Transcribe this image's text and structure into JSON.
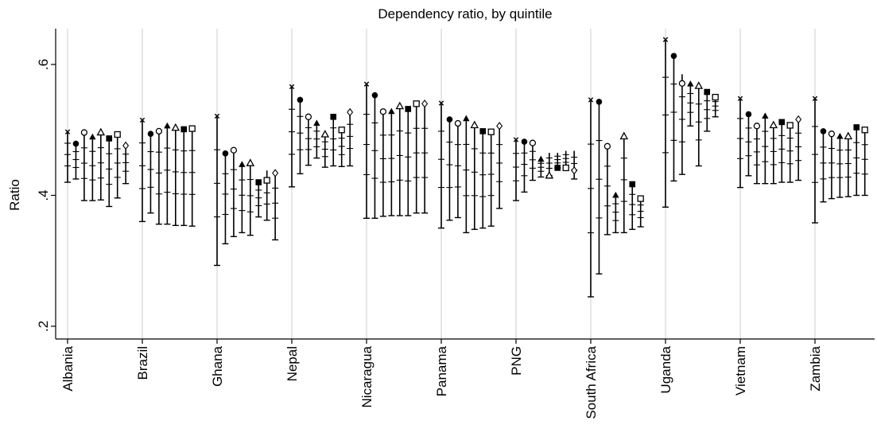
{
  "chart_data": {
    "type": "scatter",
    "subtype": "dot-and-range plot",
    "title": "Dependency ratio, by quintile",
    "xlabel": "",
    "ylabel": "Ratio",
    "ylim": [
      0.17,
      0.66
    ],
    "yticks": [
      {
        "value": 0.2,
        "label": ".2"
      },
      {
        "value": 0.4,
        "label": ".4"
      },
      {
        "value": 0.6,
        "label": ".6"
      }
    ],
    "grid": {
      "x": true,
      "y": false,
      "x_grid_color": "#e6e6e6"
    },
    "markers_per_country": [
      "x",
      "filled-circle",
      "hollow-circle",
      "filled-triangle",
      "hollow-triangle",
      "filled-square",
      "hollow-square",
      "hollow-diamond"
    ],
    "countries": [
      {
        "name": "Albania",
        "points": [
          {
            "marker": "x",
            "y": 0.497,
            "lo": 0.42,
            "hi": 0.497
          },
          {
            "marker": "filled-circle",
            "y": 0.479,
            "lo": 0.425,
            "hi": 0.479
          },
          {
            "marker": "hollow-circle",
            "y": 0.496,
            "lo": 0.392,
            "hi": 0.496
          },
          {
            "marker": "filled-triangle",
            "y": 0.489,
            "lo": 0.392,
            "hi": 0.489
          },
          {
            "marker": "hollow-triangle",
            "y": 0.496,
            "lo": 0.393,
            "hi": 0.496
          },
          {
            "marker": "filled-square",
            "y": 0.487,
            "lo": 0.383,
            "hi": 0.487
          },
          {
            "marker": "hollow-square",
            "y": 0.493,
            "lo": 0.396,
            "hi": 0.493
          },
          {
            "marker": "hollow-diamond",
            "y": 0.476,
            "lo": 0.418,
            "hi": 0.476
          }
        ]
      },
      {
        "name": "Brazil",
        "points": [
          {
            "marker": "x",
            "y": 0.515,
            "lo": 0.36,
            "hi": 0.515
          },
          {
            "marker": "filled-circle",
            "y": 0.494,
            "lo": 0.373,
            "hi": 0.494
          },
          {
            "marker": "hollow-circle",
            "y": 0.498,
            "lo": 0.356,
            "hi": 0.498
          },
          {
            "marker": "filled-triangle",
            "y": 0.506,
            "lo": 0.356,
            "hi": 0.506
          },
          {
            "marker": "hollow-triangle",
            "y": 0.503,
            "lo": 0.354,
            "hi": 0.503
          },
          {
            "marker": "filled-square",
            "y": 0.501,
            "lo": 0.354,
            "hi": 0.501
          },
          {
            "marker": "hollow-square",
            "y": 0.502,
            "lo": 0.353,
            "hi": 0.502
          }
        ]
      },
      {
        "name": "Ghana",
        "points": [
          {
            "marker": "x",
            "y": 0.521,
            "lo": 0.293,
            "hi": 0.521
          },
          {
            "marker": "filled-circle",
            "y": 0.464,
            "lo": 0.326,
            "hi": 0.464
          },
          {
            "marker": "hollow-circle",
            "y": 0.469,
            "lo": 0.337,
            "hi": 0.469
          },
          {
            "marker": "filled-triangle",
            "y": 0.447,
            "lo": 0.343,
            "hi": 0.447
          },
          {
            "marker": "hollow-triangle",
            "y": 0.449,
            "lo": 0.339,
            "hi": 0.449
          },
          {
            "marker": "filled-square",
            "y": 0.42,
            "lo": 0.367,
            "hi": 0.42
          },
          {
            "marker": "hollow-square",
            "y": 0.423,
            "lo": 0.362,
            "hi": 0.438
          },
          {
            "marker": "hollow-diamond",
            "y": 0.434,
            "lo": 0.332,
            "hi": 0.434
          }
        ]
      },
      {
        "name": "Nepal",
        "points": [
          {
            "marker": "x",
            "y": 0.566,
            "lo": 0.413,
            "hi": 0.566
          },
          {
            "marker": "filled-circle",
            "y": 0.546,
            "lo": 0.433,
            "hi": 0.546
          },
          {
            "marker": "hollow-circle",
            "y": 0.52,
            "lo": 0.446,
            "hi": 0.52
          },
          {
            "marker": "filled-triangle",
            "y": 0.51,
            "lo": 0.457,
            "hi": 0.51
          },
          {
            "marker": "hollow-triangle",
            "y": 0.493,
            "lo": 0.443,
            "hi": 0.493
          },
          {
            "marker": "filled-square",
            "y": 0.52,
            "lo": 0.445,
            "hi": 0.52
          },
          {
            "marker": "hollow-square",
            "y": 0.5,
            "lo": 0.444,
            "hi": 0.5
          },
          {
            "marker": "hollow-diamond",
            "y": 0.527,
            "lo": 0.445,
            "hi": 0.527
          }
        ]
      },
      {
        "name": "Nicaragua",
        "points": [
          {
            "marker": "x",
            "y": 0.57,
            "lo": 0.365,
            "hi": 0.57
          },
          {
            "marker": "filled-circle",
            "y": 0.553,
            "lo": 0.365,
            "hi": 0.553
          },
          {
            "marker": "hollow-circle",
            "y": 0.528,
            "lo": 0.368,
            "hi": 0.528
          },
          {
            "marker": "filled-triangle",
            "y": 0.528,
            "lo": 0.369,
            "hi": 0.528
          },
          {
            "marker": "hollow-triangle",
            "y": 0.536,
            "lo": 0.369,
            "hi": 0.536
          },
          {
            "marker": "filled-square",
            "y": 0.532,
            "lo": 0.369,
            "hi": 0.532
          },
          {
            "marker": "hollow-square",
            "y": 0.54,
            "lo": 0.373,
            "hi": 0.54
          },
          {
            "marker": "hollow-diamond",
            "y": 0.54,
            "lo": 0.373,
            "hi": 0.54
          }
        ]
      },
      {
        "name": "Panama",
        "points": [
          {
            "marker": "x",
            "y": 0.541,
            "lo": 0.35,
            "hi": 0.541
          },
          {
            "marker": "filled-circle",
            "y": 0.516,
            "lo": 0.362,
            "hi": 0.516
          },
          {
            "marker": "hollow-circle",
            "y": 0.51,
            "lo": 0.366,
            "hi": 0.51
          },
          {
            "marker": "filled-triangle",
            "y": 0.517,
            "lo": 0.343,
            "hi": 0.517
          },
          {
            "marker": "hollow-triangle",
            "y": 0.507,
            "lo": 0.348,
            "hi": 0.507
          },
          {
            "marker": "filled-square",
            "y": 0.498,
            "lo": 0.35,
            "hi": 0.498
          },
          {
            "marker": "hollow-square",
            "y": 0.497,
            "lo": 0.353,
            "hi": 0.497
          },
          {
            "marker": "hollow-diamond",
            "y": 0.506,
            "lo": 0.38,
            "hi": 0.506
          }
        ]
      },
      {
        "name": "PNG",
        "points": [
          {
            "marker": "x",
            "y": 0.485,
            "lo": 0.392,
            "hi": 0.485
          },
          {
            "marker": "filled-circle",
            "y": 0.482,
            "lo": 0.405,
            "hi": 0.482
          },
          {
            "marker": "hollow-circle",
            "y": 0.48,
            "lo": 0.423,
            "hi": 0.48
          },
          {
            "marker": "filled-triangle",
            "y": 0.455,
            "lo": 0.428,
            "hi": 0.455
          },
          {
            "marker": "hollow-triangle",
            "y": 0.43,
            "lo": 0.43,
            "hi": 0.465
          },
          {
            "marker": "filled-square",
            "y": 0.442,
            "lo": 0.442,
            "hi": 0.465
          },
          {
            "marker": "hollow-square",
            "y": 0.442,
            "lo": 0.442,
            "hi": 0.468
          },
          {
            "marker": "hollow-diamond",
            "y": 0.438,
            "lo": 0.425,
            "hi": 0.468
          }
        ]
      },
      {
        "name": "South Africa",
        "points": [
          {
            "marker": "x",
            "y": 0.546,
            "lo": 0.245,
            "hi": 0.546
          },
          {
            "marker": "filled-circle",
            "y": 0.543,
            "lo": 0.28,
            "hi": 0.543
          },
          {
            "marker": "hollow-circle",
            "y": 0.475,
            "lo": 0.34,
            "hi": 0.475
          },
          {
            "marker": "filled-triangle",
            "y": 0.4,
            "lo": 0.343,
            "hi": 0.4
          },
          {
            "marker": "hollow-triangle",
            "y": 0.49,
            "lo": 0.343,
            "hi": 0.49
          },
          {
            "marker": "filled-square",
            "y": 0.417,
            "lo": 0.348,
            "hi": 0.417
          },
          {
            "marker": "hollow-square",
            "y": 0.395,
            "lo": 0.352,
            "hi": 0.395
          }
        ]
      },
      {
        "name": "Uganda",
        "points": [
          {
            "marker": "x",
            "y": 0.638,
            "lo": 0.382,
            "hi": 0.638
          },
          {
            "marker": "filled-circle",
            "y": 0.613,
            "lo": 0.422,
            "hi": 0.613
          },
          {
            "marker": "hollow-circle",
            "y": 0.571,
            "lo": 0.432,
            "hi": 0.585
          },
          {
            "marker": "filled-triangle",
            "y": 0.57,
            "lo": 0.506,
            "hi": 0.57
          },
          {
            "marker": "hollow-triangle",
            "y": 0.567,
            "lo": 0.445,
            "hi": 0.567
          },
          {
            "marker": "filled-square",
            "y": 0.558,
            "lo": 0.498,
            "hi": 0.558
          },
          {
            "marker": "hollow-square",
            "y": 0.55,
            "lo": 0.52,
            "hi": 0.55
          }
        ]
      },
      {
        "name": "Vietnam",
        "points": [
          {
            "marker": "x",
            "y": 0.548,
            "lo": 0.412,
            "hi": 0.548
          },
          {
            "marker": "filled-circle",
            "y": 0.524,
            "lo": 0.43,
            "hi": 0.524
          },
          {
            "marker": "hollow-circle",
            "y": 0.506,
            "lo": 0.418,
            "hi": 0.506
          },
          {
            "marker": "filled-triangle",
            "y": 0.521,
            "lo": 0.418,
            "hi": 0.521
          },
          {
            "marker": "hollow-triangle",
            "y": 0.507,
            "lo": 0.418,
            "hi": 0.507
          },
          {
            "marker": "filled-square",
            "y": 0.512,
            "lo": 0.42,
            "hi": 0.512
          },
          {
            "marker": "hollow-square",
            "y": 0.507,
            "lo": 0.42,
            "hi": 0.507
          },
          {
            "marker": "hollow-diamond",
            "y": 0.516,
            "lo": 0.423,
            "hi": 0.516
          }
        ]
      },
      {
        "name": "Zambia",
        "points": [
          {
            "marker": "x",
            "y": 0.548,
            "lo": 0.358,
            "hi": 0.548
          },
          {
            "marker": "filled-circle",
            "y": 0.498,
            "lo": 0.39,
            "hi": 0.498
          },
          {
            "marker": "hollow-circle",
            "y": 0.494,
            "lo": 0.395,
            "hi": 0.494
          },
          {
            "marker": "filled-triangle",
            "y": 0.49,
            "lo": 0.397,
            "hi": 0.49
          },
          {
            "marker": "hollow-triangle",
            "y": 0.49,
            "lo": 0.398,
            "hi": 0.49
          },
          {
            "marker": "filled-square",
            "y": 0.504,
            "lo": 0.4,
            "hi": 0.504
          },
          {
            "marker": "hollow-square",
            "y": 0.5,
            "lo": 0.4,
            "hi": 0.5
          }
        ]
      }
    ]
  }
}
